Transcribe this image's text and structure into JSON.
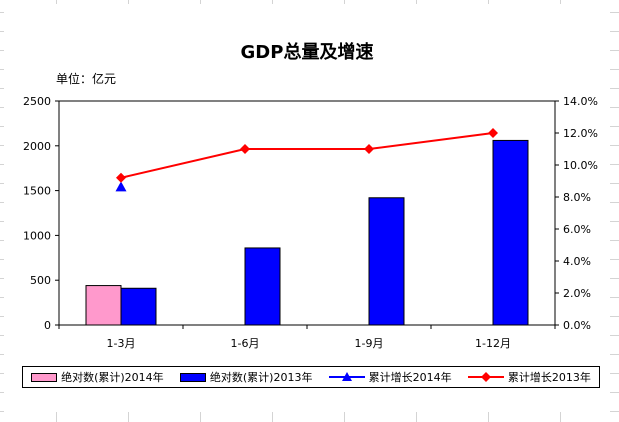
{
  "chart_data": {
    "type": "bar",
    "title": "GDP总量及增速",
    "unit_label": "单位：亿元",
    "categories": [
      "1-3月",
      "1-6月",
      "1-9月",
      "1-12月"
    ],
    "series": [
      {
        "name": "绝对数(累计)2014年",
        "type": "bar",
        "axis": "left",
        "color": "#ff99cc",
        "values": [
          440,
          null,
          null,
          null
        ]
      },
      {
        "name": "绝对数(累计)2013年",
        "type": "bar",
        "axis": "left",
        "color": "#0000ff",
        "values": [
          410,
          860,
          1420,
          2060
        ]
      },
      {
        "name": "累计增长2014年",
        "type": "line",
        "axis": "right",
        "color": "#0000ff",
        "marker": "triangle",
        "values": [
          8.6,
          null,
          null,
          null
        ]
      },
      {
        "name": "累计增长2013年",
        "type": "line",
        "axis": "right",
        "color": "#ff0000",
        "marker": "diamond",
        "values": [
          9.2,
          11.0,
          11.0,
          12.0
        ]
      }
    ],
    "y_left": {
      "ticks": [
        "0",
        "500",
        "1000",
        "1500",
        "2000",
        "2500"
      ],
      "ylim": [
        0,
        2500
      ]
    },
    "y_right": {
      "ticks": [
        "0.0%",
        "2.0%",
        "4.0%",
        "6.0%",
        "8.0%",
        "10.0%",
        "12.0%",
        "14.0%"
      ],
      "ylim": [
        0,
        14
      ]
    },
    "legend_position": "bottom",
    "grid": false
  }
}
